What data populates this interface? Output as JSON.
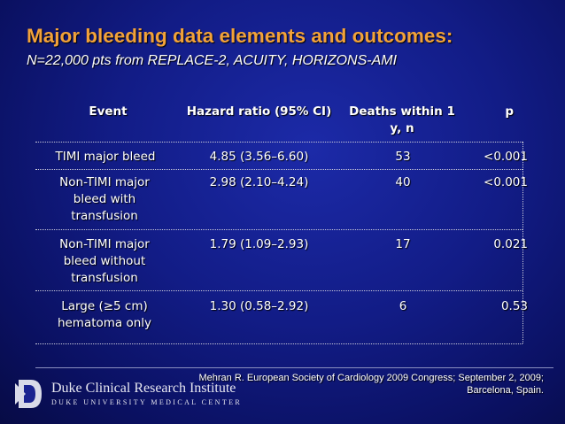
{
  "slide": {
    "title": "Major bleeding data elements and outcomes:",
    "subtitle": "N=22,000 pts from REPLACE-2, ACUITY, HORIZONS-AMI"
  },
  "table": {
    "headers": [
      "Event",
      "Hazard ratio (95% CI)",
      "Deaths within 1 y, n",
      "p"
    ],
    "rows": [
      {
        "event": "TIMI major bleed",
        "hr": "4.85 (3.56–6.60)",
        "deaths": "53",
        "p": "<0.001"
      },
      {
        "event": "Non-TIMI major bleed with transfusion",
        "hr": "2.98 (2.10–4.24)",
        "deaths": "40",
        "p": "<0.001"
      },
      {
        "event": "Non-TIMI major bleed without transfusion",
        "hr": "1.79 (1.09–2.93)",
        "deaths": "17",
        "p": "0.021"
      },
      {
        "event": "Large (≥5 cm) hematoma only",
        "hr": "1.30 (0.58–2.92)",
        "deaths": "6",
        "p": "0.53"
      }
    ]
  },
  "citation": "Mehran R. European Society of Cardiology 2009 Congress; September 2, 2009; Barcelona, Spain.",
  "footer": {
    "logo_name": "Duke Clinical Research Institute",
    "logo_sub": "DUKE UNIVERSITY MEDICAL CENTER"
  },
  "colors": {
    "background": "#121c86",
    "title": "#f2a23a",
    "text": "#ffffff"
  },
  "icons": [
    "duke-shield-logo-icon"
  ]
}
